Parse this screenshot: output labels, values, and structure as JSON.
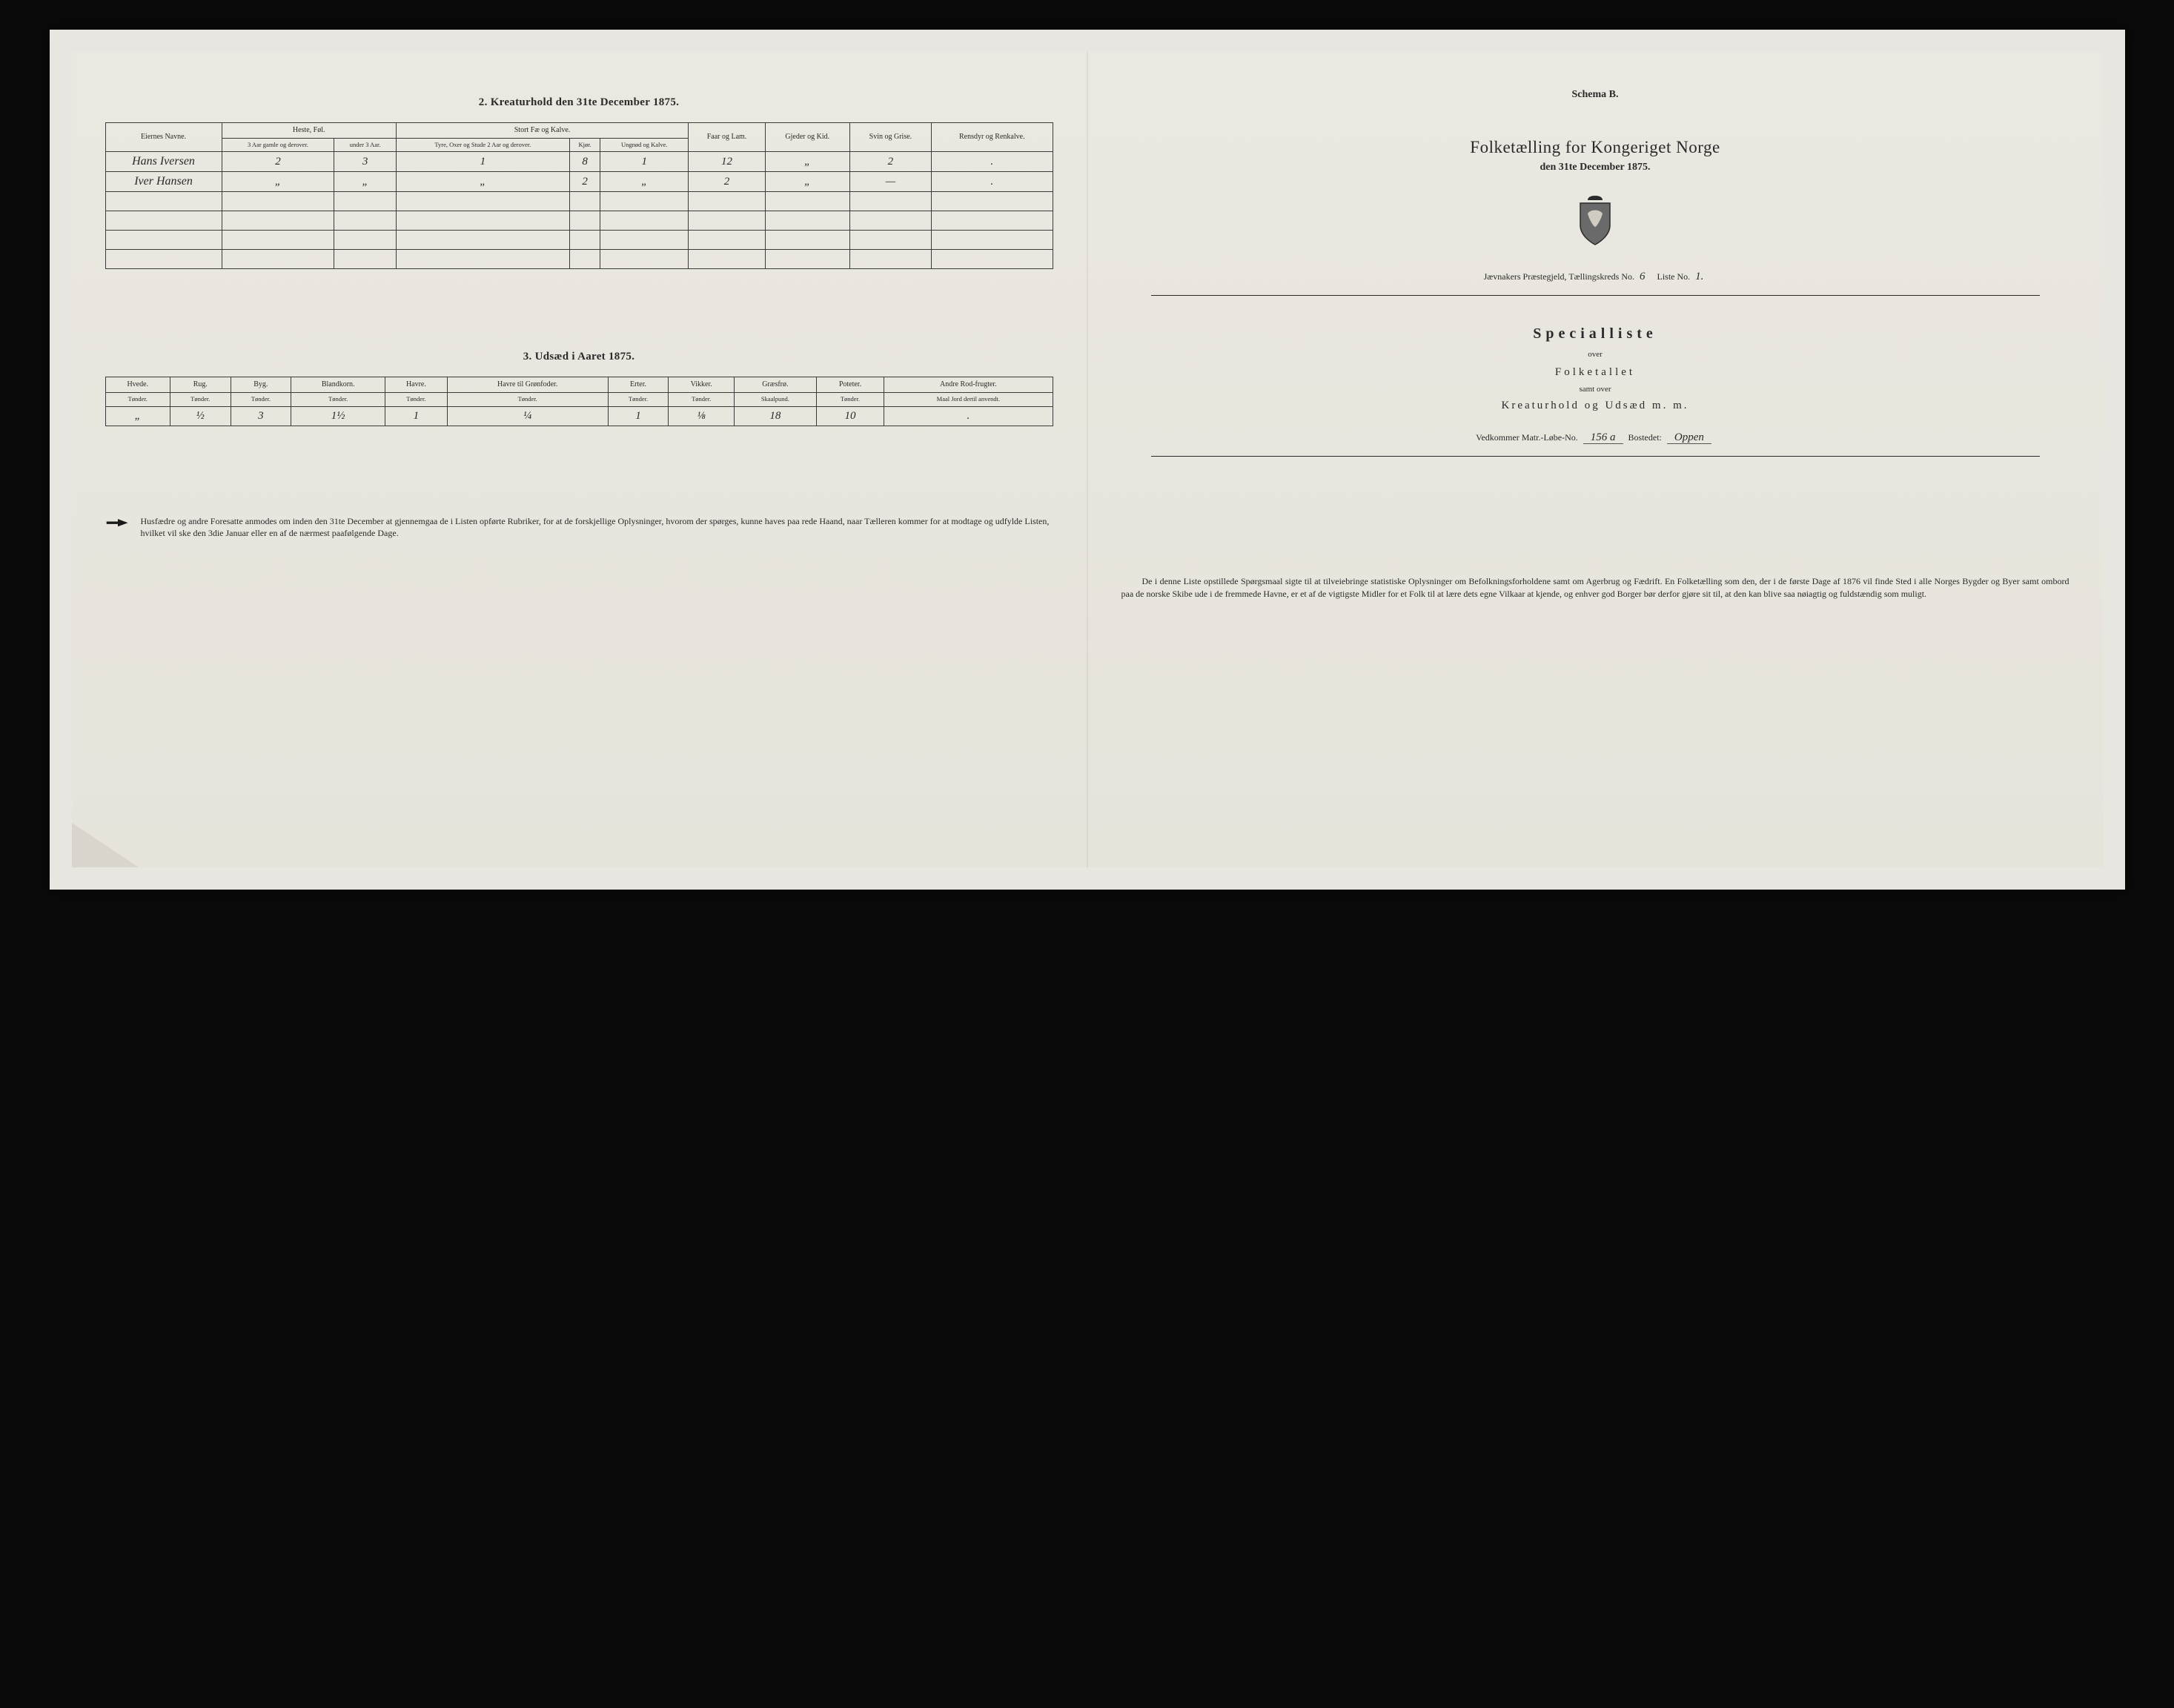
{
  "left": {
    "section2_title": "2. Kreaturhold den 31te December 1875.",
    "table2": {
      "headers": {
        "owners": "Eiernes Navne.",
        "heste_group": "Heste, Føl.",
        "heste_old": "3 Aar gamle og derover.",
        "heste_young": "under 3 Aar.",
        "stort_group": "Stort Fæ og Kalve.",
        "stort_a": "Tyre, Oxer og Stude 2 Aar og derover.",
        "stort_b": "Kjør.",
        "stort_c": "Ungnød og Kalve.",
        "faar": "Faar og Lam.",
        "gjeder": "Gjeder og Kid.",
        "svin": "Svin og Grise.",
        "rensdyr": "Rensdyr og Renkalve."
      },
      "rows": [
        {
          "owner": "Hans Iversen",
          "v": [
            "2",
            "3",
            "1",
            "8",
            "1",
            "12",
            "„",
            "2",
            "."
          ]
        },
        {
          "owner": "Iver Hansen",
          "v": [
            "„",
            "„",
            "„",
            "2",
            "„",
            "2",
            "„",
            "—",
            "."
          ]
        }
      ]
    },
    "section3_title": "3. Udsæd i Aaret 1875.",
    "table3": {
      "headers": [
        "Hvede.",
        "Rug.",
        "Byg.",
        "Blandkorn.",
        "Havre.",
        "Havre til Grønfoder.",
        "Erter.",
        "Vikker.",
        "Græsfrø.",
        "Poteter.",
        "Andre Rod-frugter."
      ],
      "units": [
        "Tønder.",
        "Tønder.",
        "Tønder.",
        "Tønder.",
        "Tønder.",
        "Tønder.",
        "Tønder.",
        "Tønder.",
        "Skaalpund.",
        "Tønder.",
        "Maal Jord dertil anvendt."
      ],
      "row": [
        "„",
        "½",
        "3",
        "1½",
        "1",
        "¼",
        "1",
        "⅛",
        "18",
        "10",
        "."
      ]
    },
    "notice": "Husfædre og andre Foresatte anmodes om inden den 31te December at gjennemgaa de i Listen opførte Rubriker, for at de forskjellige Oplysninger, hvorom der spørges, kunne haves paa rede Haand, naar Tælleren kommer for at modtage og udfylde Listen, hvilket vil ske den 3die Januar eller en af de nærmest paafølgende Dage."
  },
  "right": {
    "schema": "Schema B.",
    "title": "Folketælling for Kongeriget Norge",
    "date": "den 31te December 1875.",
    "parish_prefix": "Jævnakers Præstegjeld, Tællingskreds No.",
    "kreds_no": "6",
    "liste_label": "Liste No.",
    "liste_no": "1.",
    "special": "Specialliste",
    "over": "over",
    "folketallet": "Folketallet",
    "samt": "samt over",
    "kreatur": "Kreaturhold og Udsæd m. m.",
    "vedkom_label": "Vedkommer Matr.-Løbe-No.",
    "matr_no": "156 a",
    "bosted_label": "Bostedet:",
    "bosted": "Oppen",
    "bottom": "De i denne Liste opstillede Spørgsmaal sigte til at tilveiebringe statistiske Oplysninger om Befolkningsforholdene samt om Agerbrug og Fædrift. En Folketælling som den, der i de første Dage af 1876 vil finde Sted i alle Norges Bygder og Byer samt ombord paa de norske Skibe ude i de fremmede Havne, er et af de vigtigste Midler for et Folk til at lære dets egne Vilkaar at kjende, og enhver god Borger bør derfor gjøre sit til, at den kan blive saa nøiagtig og fuldstændig som muligt."
  },
  "colors": {
    "paper": "#ebe8e1",
    "ink": "#2a2a2a",
    "frame": "#0a0a0a"
  }
}
